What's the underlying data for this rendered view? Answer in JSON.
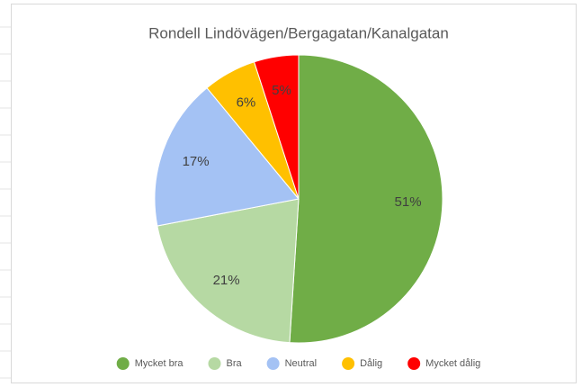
{
  "chart_data": {
    "type": "pie",
    "title": "Rondell Lindövägen/Bergagatan/Kanalgatan",
    "categories": [
      "Mycket bra",
      "Bra",
      "Neutral",
      "Dålig",
      "Mycket dålig"
    ],
    "values": [
      51,
      21,
      17,
      6,
      5
    ],
    "value_labels": [
      "51%",
      "21%",
      "17%",
      "6%",
      "5%"
    ],
    "colors": [
      "#70ad47",
      "#b6d9a3",
      "#a4c2f4",
      "#ffc000",
      "#ff0000"
    ],
    "legend": "bottom"
  }
}
